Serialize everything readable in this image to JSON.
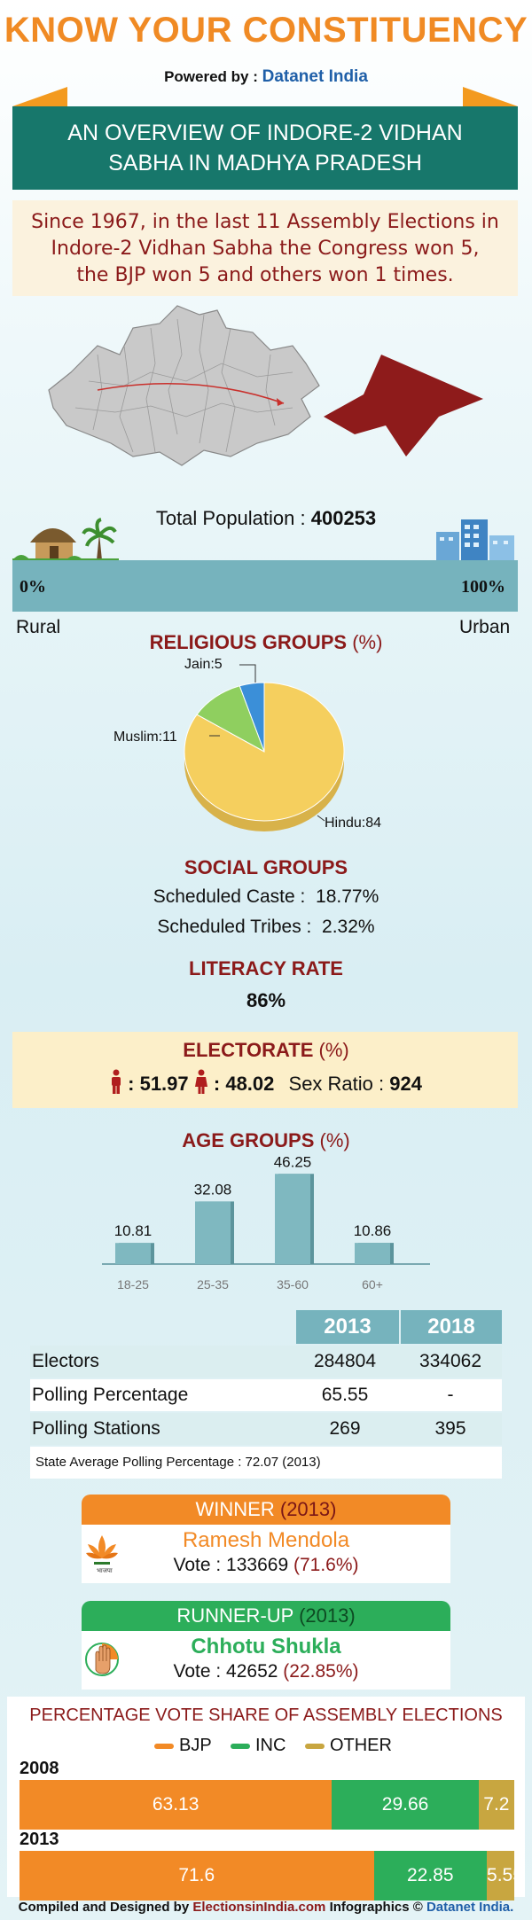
{
  "header": {
    "title": "KNOW YOUR CONSTITUENCY",
    "powered_prefix": "Powered by : ",
    "powered_brand": "Datanet India",
    "banner_line1": "AN OVERVIEW OF INDORE-2 VIDHAN",
    "banner_line2": "SABHA IN MADHYA PRADESH"
  },
  "summary": {
    "line1": "Since 1967, in the last 11 Assembly Elections in",
    "line2": "Indore-2 Vidhan Sabha the Congress won 5,",
    "line3": "the BJP won 5 and others won 1 times."
  },
  "population": {
    "label": "Total Population : ",
    "value": "400253",
    "rural_pct_label": "0%",
    "urban_pct_label": "100%",
    "rural_label": "Rural",
    "urban_label": "Urban",
    "urban_fraction": 1.0
  },
  "religious": {
    "title": "RELIGIOUS GROUPS",
    "title_suffix": "(%)",
    "labels": {
      "hindu": "Hindu:84",
      "muslim": "Muslim:11",
      "jain": "Jain:5"
    }
  },
  "social": {
    "title": "SOCIAL GROUPS",
    "sc_label": "Scheduled Caste :",
    "sc_value": "18.77%",
    "st_label": "Scheduled Tribes :",
    "st_value": "2.32%"
  },
  "literacy": {
    "title": "LITERACY RATE",
    "value": "86%"
  },
  "electorate": {
    "title": "ELECTORATE",
    "title_suffix": "(%)",
    "male": ": 51.97",
    "female": ": 48.02",
    "sex_ratio_label": "Sex Ratio :",
    "sex_ratio_value": "924"
  },
  "age": {
    "title": "AGE GROUPS",
    "title_suffix": "(%)"
  },
  "chart_data": {
    "type": "bar",
    "title": "AGE GROUPS (%)",
    "categories": [
      "18-25",
      "25-35",
      "35-60",
      "60+"
    ],
    "values": [
      10.81,
      32.08,
      46.25,
      10.86
    ],
    "value_labels": [
      "10.81",
      "32.08",
      "46.25",
      "10.86"
    ],
    "ylim": [
      0,
      50
    ],
    "grid": false
  },
  "religious_chart": {
    "type": "pie",
    "categories": [
      "Hindu",
      "Muslim",
      "Jain"
    ],
    "values": [
      84,
      11,
      5
    ],
    "colors": [
      "#f5cf5e",
      "#8fcf5f",
      "#3b8fd8"
    ]
  },
  "elections_table": {
    "headers": [
      "2013",
      "2018"
    ],
    "rows": [
      {
        "label": "Electors",
        "v2013": "284804",
        "v2018": "334062"
      },
      {
        "label": "Polling Percentage",
        "v2013": "65.55",
        "v2018": "-"
      },
      {
        "label": "Polling Stations",
        "v2013": "269",
        "v2018": "395"
      }
    ],
    "note": "State Average Polling Percentage : 72.07 (2013)"
  },
  "winner": {
    "head": "WINNER",
    "head_year": "(2013)",
    "name": "Ramesh Mendola",
    "vote_label": "Vote : 133669",
    "vote_pct": "(71.6%)",
    "party_symbol": "lotus-icon"
  },
  "runner_up": {
    "head": "RUNNER-UP",
    "head_year": "(2013)",
    "name": "Chhotu Shukla",
    "vote_label": "Vote : 42652",
    "vote_pct": "(22.85%)",
    "party_symbol": "hand-icon"
  },
  "vote_share": {
    "title": "PERCENTAGE VOTE SHARE OF ASSEMBLY ELECTIONS",
    "legend": [
      "BJP",
      "INC",
      "OTHER"
    ],
    "colors": {
      "bjp": "#f28a26",
      "inc": "#2cae5a",
      "other": "#c8a640"
    },
    "years": [
      {
        "year": "2008",
        "bjp": 63.13,
        "inc": 29.66,
        "other": 7.2,
        "bjp_label": "63.13",
        "inc_label": "29.66",
        "other_label": "7.2"
      },
      {
        "year": "2013",
        "bjp": 71.6,
        "inc": 22.85,
        "other": 5.55,
        "bjp_label": "71.6",
        "inc_label": "22.85",
        "other_label": "5.55"
      }
    ]
  },
  "footer": {
    "prefix": "Compiled and Designed by",
    "brand1": "ElectionsinIndia.com",
    "middle": "Infographics ©",
    "brand2": "Datanet India."
  }
}
